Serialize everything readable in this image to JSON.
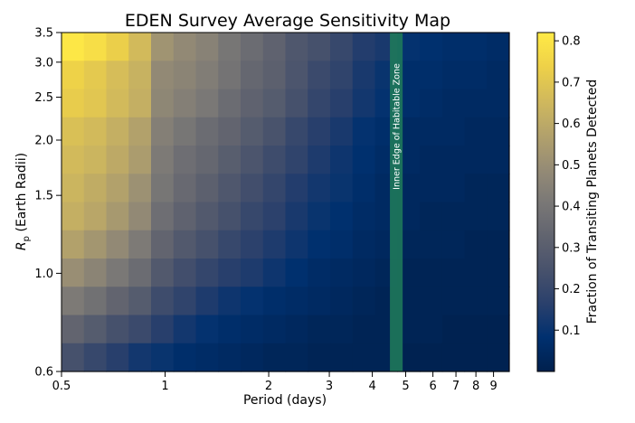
{
  "chart_data": {
    "type": "heatmap",
    "title": "EDEN Survey Average Sensitivity Map",
    "xlabel": "Period (days)",
    "ylabel": "R_p (Earth Radii)",
    "ylabel_main": "R",
    "ylabel_sub": "p",
    "ylabel_rest": " (Earth Radii)",
    "x_scale": "log",
    "y_scale": "log",
    "xlim": [
      0.5,
      10
    ],
    "ylim": [
      0.6,
      3.5
    ],
    "x_ticks": [
      0.5,
      1,
      2,
      3,
      4,
      5,
      6,
      7,
      8,
      9
    ],
    "x_tick_labels": [
      "0.5",
      "1",
      "2",
      "3",
      "4",
      "5",
      "6",
      "7",
      "8",
      "9"
    ],
    "y_ticks": [
      0.6,
      1.0,
      1.5,
      2.0,
      2.5,
      3.0,
      3.5
    ],
    "y_tick_labels": [
      "0.6",
      "1.0",
      "1.5",
      "2.0",
      "2.5",
      "3.0",
      "3.5"
    ],
    "colormap": "cividis",
    "colorbar": {
      "label": "Fraction of Transiting Planets Detected",
      "range": [
        0.0,
        0.82
      ],
      "ticks": [
        0.1,
        0.2,
        0.3,
        0.4,
        0.5,
        0.6,
        0.7,
        0.8
      ],
      "tick_labels": [
        "0.1",
        "0.2",
        "0.3",
        "0.4",
        "0.5",
        "0.6",
        "0.7",
        "0.8"
      ]
    },
    "annotation": {
      "text": "Inner Edge of Habitable Zone",
      "period_range": [
        4.5,
        4.9
      ],
      "color": "#1f7a5a"
    },
    "grid": false,
    "cells": {
      "n_cols": 20,
      "n_rows": 12,
      "row_order": "top_to_bottom",
      "values": [
        [
          0.81,
          0.78,
          0.73,
          0.66,
          0.52,
          0.48,
          0.45,
          0.4,
          0.36,
          0.32,
          0.27,
          0.24,
          0.2,
          0.15,
          0.13,
          0.09,
          0.08,
          0.07,
          0.07,
          0.06
        ],
        [
          0.74,
          0.71,
          0.67,
          0.63,
          0.48,
          0.46,
          0.43,
          0.39,
          0.34,
          0.31,
          0.26,
          0.21,
          0.18,
          0.13,
          0.1,
          0.07,
          0.07,
          0.06,
          0.06,
          0.05
        ],
        [
          0.72,
          0.7,
          0.66,
          0.62,
          0.47,
          0.44,
          0.41,
          0.36,
          0.32,
          0.29,
          0.24,
          0.19,
          0.16,
          0.12,
          0.09,
          0.07,
          0.06,
          0.05,
          0.05,
          0.05
        ],
        [
          0.68,
          0.66,
          0.62,
          0.57,
          0.44,
          0.4,
          0.36,
          0.33,
          0.29,
          0.25,
          0.2,
          0.16,
          0.13,
          0.09,
          0.07,
          0.05,
          0.05,
          0.05,
          0.04,
          0.04
        ],
        [
          0.66,
          0.64,
          0.6,
          0.55,
          0.42,
          0.37,
          0.34,
          0.3,
          0.26,
          0.22,
          0.18,
          0.14,
          0.11,
          0.08,
          0.06,
          0.05,
          0.04,
          0.04,
          0.04,
          0.04
        ],
        [
          0.64,
          0.61,
          0.57,
          0.51,
          0.4,
          0.35,
          0.31,
          0.27,
          0.23,
          0.19,
          0.15,
          0.12,
          0.1,
          0.07,
          0.05,
          0.04,
          0.04,
          0.04,
          0.03,
          0.03
        ],
        [
          0.62,
          0.59,
          0.54,
          0.48,
          0.37,
          0.32,
          0.28,
          0.24,
          0.2,
          0.17,
          0.13,
          0.1,
          0.08,
          0.06,
          0.05,
          0.04,
          0.03,
          0.03,
          0.03,
          0.03
        ],
        [
          0.57,
          0.53,
          0.48,
          0.42,
          0.33,
          0.28,
          0.24,
          0.2,
          0.17,
          0.14,
          0.11,
          0.08,
          0.07,
          0.05,
          0.04,
          0.03,
          0.03,
          0.03,
          0.02,
          0.02
        ],
        [
          0.5,
          0.46,
          0.41,
          0.36,
          0.28,
          0.23,
          0.19,
          0.16,
          0.14,
          0.11,
          0.08,
          0.06,
          0.05,
          0.04,
          0.03,
          0.02,
          0.02,
          0.02,
          0.02,
          0.02
        ],
        [
          0.42,
          0.38,
          0.33,
          0.29,
          0.22,
          0.18,
          0.14,
          0.11,
          0.09,
          0.07,
          0.06,
          0.05,
          0.04,
          0.03,
          0.02,
          0.02,
          0.02,
          0.02,
          0.02,
          0.02
        ],
        [
          0.33,
          0.29,
          0.24,
          0.21,
          0.16,
          0.12,
          0.09,
          0.07,
          0.06,
          0.05,
          0.04,
          0.03,
          0.03,
          0.02,
          0.02,
          0.02,
          0.02,
          0.01,
          0.01,
          0.01
        ],
        [
          0.24,
          0.2,
          0.16,
          0.12,
          0.1,
          0.07,
          0.06,
          0.05,
          0.04,
          0.03,
          0.03,
          0.02,
          0.02,
          0.02,
          0.02,
          0.01,
          0.01,
          0.01,
          0.01,
          0.01
        ]
      ]
    }
  }
}
